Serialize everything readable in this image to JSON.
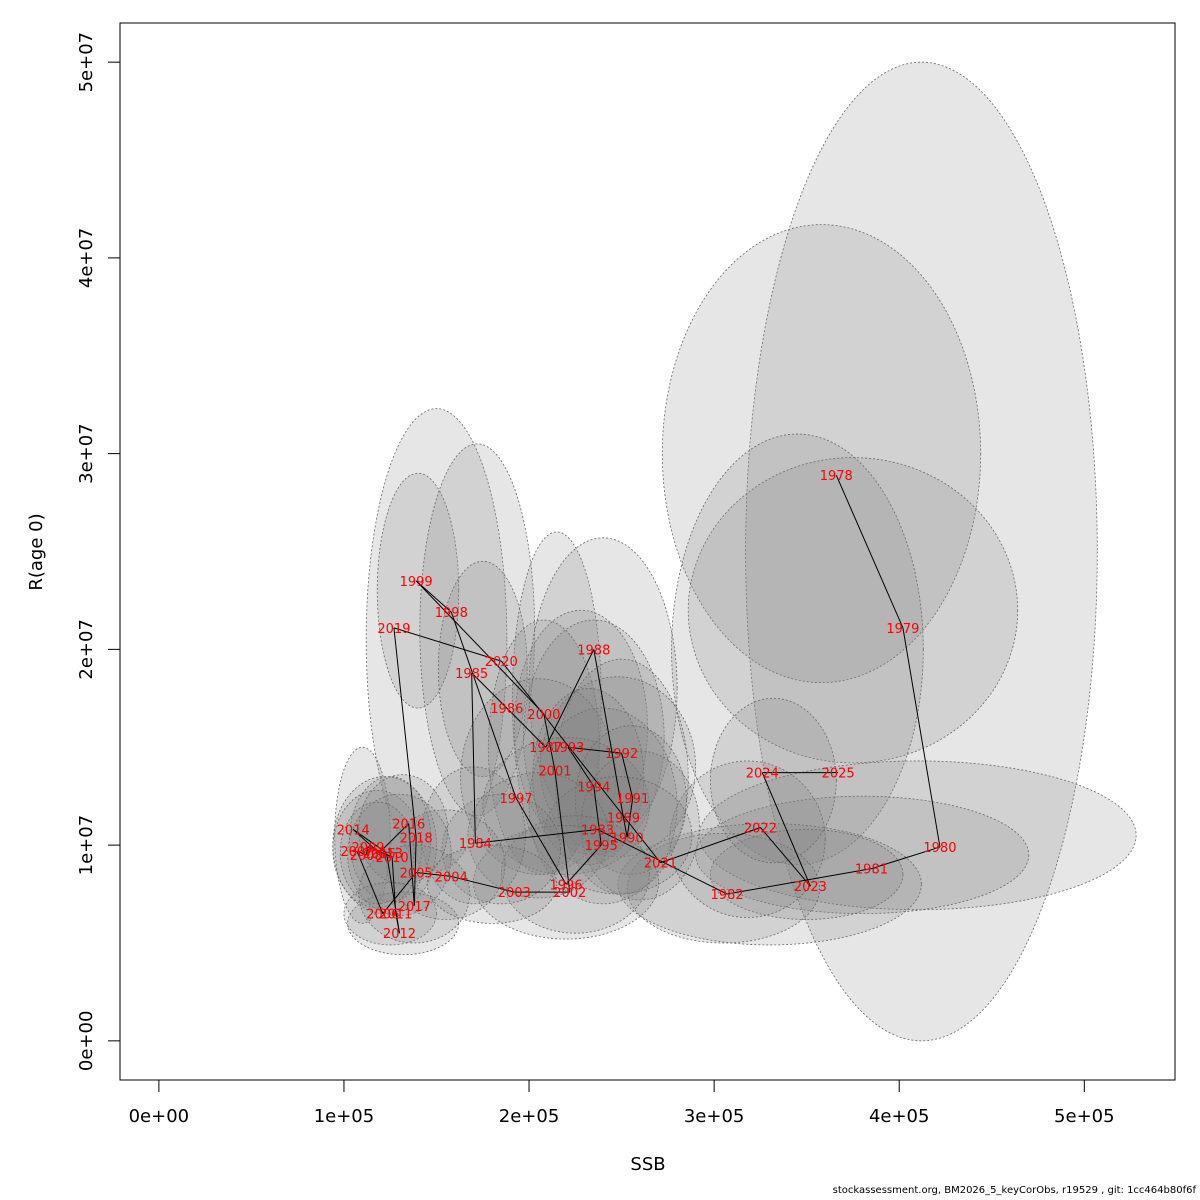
{
  "chart_data": {
    "type": "scatter",
    "xlabel": "SSB",
    "ylabel": "R(age 0)",
    "xlim": [
      -21000,
      549000
    ],
    "ylim": [
      -2000000,
      52000000
    ],
    "x_ticks": [
      0,
      100000,
      200000,
      300000,
      400000,
      500000
    ],
    "x_tick_labels": [
      "0e+00",
      "1e+05",
      "2e+05",
      "3e+05",
      "4e+05",
      "5e+05"
    ],
    "y_ticks": [
      0,
      10000000,
      20000000,
      30000000,
      40000000,
      50000000
    ],
    "y_tick_labels": [
      "0e+00",
      "1e+07",
      "2e+07",
      "3e+07",
      "4e+07",
      "5e+07"
    ],
    "colors": {
      "labels": "#ff0000",
      "path": "#000000",
      "ellipse_fill": "#808080",
      "ellipse_stroke": "#666666"
    },
    "points": [
      {
        "year": "1978",
        "ssb": 366000,
        "rec": 28900000
      },
      {
        "year": "1979",
        "ssb": 402000,
        "rec": 21100000
      },
      {
        "year": "1980",
        "ssb": 422000,
        "rec": 9900000
      },
      {
        "year": "1981",
        "ssb": 385000,
        "rec": 8800000
      },
      {
        "year": "1982",
        "ssb": 307000,
        "rec": 7500000
      },
      {
        "year": "1983",
        "ssb": 237000,
        "rec": 10800000
      },
      {
        "year": "1984",
        "ssb": 171000,
        "rec": 10100000
      },
      {
        "year": "1985",
        "ssb": 169000,
        "rec": 18800000
      },
      {
        "year": "1986",
        "ssb": 188000,
        "rec": 17000000
      },
      {
        "year": "1987",
        "ssb": 209000,
        "rec": 15000000
      },
      {
        "year": "1988",
        "ssb": 235000,
        "rec": 20000000
      },
      {
        "year": "1989",
        "ssb": 251000,
        "rec": 11400000
      },
      {
        "year": "1990",
        "ssb": 253000,
        "rec": 10400000
      },
      {
        "year": "1991",
        "ssb": 256000,
        "rec": 12400000
      },
      {
        "year": "1992",
        "ssb": 250000,
        "rec": 14700000
      },
      {
        "year": "1993",
        "ssb": 221000,
        "rec": 15000000
      },
      {
        "year": "1994",
        "ssb": 235000,
        "rec": 13000000
      },
      {
        "year": "1995",
        "ssb": 239000,
        "rec": 10000000
      },
      {
        "year": "1996",
        "ssb": 220000,
        "rec": 8000000
      },
      {
        "year": "1997",
        "ssb": 193000,
        "rec": 12400000
      },
      {
        "year": "1998",
        "ssb": 158000,
        "rec": 21900000
      },
      {
        "year": "1999",
        "ssb": 139000,
        "rec": 23500000
      },
      {
        "year": "2000",
        "ssb": 208000,
        "rec": 16700000
      },
      {
        "year": "2001",
        "ssb": 214000,
        "rec": 13800000
      },
      {
        "year": "2002",
        "ssb": 222000,
        "rec": 7600000
      },
      {
        "year": "2003",
        "ssb": 192000,
        "rec": 7600000
      },
      {
        "year": "2004",
        "ssb": 158000,
        "rec": 8400000
      },
      {
        "year": "2005",
        "ssb": 139000,
        "rec": 8600000
      },
      {
        "year": "2006",
        "ssb": 121000,
        "rec": 6500000
      },
      {
        "year": "2007",
        "ssb": 107000,
        "rec": 9700000
      },
      {
        "year": "2008",
        "ssb": 112000,
        "rec": 9500000
      },
      {
        "year": "2009",
        "ssb": 113000,
        "rec": 9900000
      },
      {
        "year": "2010",
        "ssb": 126000,
        "rec": 9400000
      },
      {
        "year": "2011",
        "ssb": 128000,
        "rec": 6500000
      },
      {
        "year": "2012",
        "ssb": 130000,
        "rec": 5500000
      },
      {
        "year": "2013",
        "ssb": 123000,
        "rec": 9600000
      },
      {
        "year": "2014",
        "ssb": 105000,
        "rec": 10800000
      },
      {
        "year": "2015",
        "ssb": 119000,
        "rec": 9600000
      },
      {
        "year": "2016",
        "ssb": 135000,
        "rec": 11100000
      },
      {
        "year": "2017",
        "ssb": 138000,
        "rec": 6900000
      },
      {
        "year": "2018",
        "ssb": 139000,
        "rec": 10400000
      },
      {
        "year": "2019",
        "ssb": 127000,
        "rec": 21100000
      },
      {
        "year": "2020",
        "ssb": 185000,
        "rec": 19400000
      },
      {
        "year": "2021",
        "ssb": 271000,
        "rec": 9100000
      },
      {
        "year": "2022",
        "ssb": 325000,
        "rec": 10900000
      },
      {
        "year": "2023",
        "ssb": 352000,
        "rec": 7900000
      },
      {
        "year": "2024",
        "ssb": 326000,
        "rec": 13700000
      },
      {
        "year": "2025",
        "ssb": 367000,
        "rec": 13700000
      }
    ],
    "path_order": [
      "1978",
      "1979",
      "1980",
      "1981",
      "1982",
      "1983",
      "1984",
      "1985",
      "1986",
      "1987",
      "1988",
      "1989",
      "1990",
      "1991",
      "1992",
      "1993",
      "1994",
      "1995",
      "1996",
      "1997",
      "1998",
      "1999",
      "2000",
      "2001",
      "2002",
      "2003",
      "2004",
      "2005",
      "2006",
      "2007",
      "2008",
      "2009",
      "2010",
      "2011",
      "2012",
      "2013",
      "2014",
      "2015",
      "2016",
      "2017",
      "2018",
      "2019",
      "2020",
      "2021",
      "2022",
      "2023",
      "2024",
      "2025"
    ],
    "ellipses": [
      {
        "cx": 412000,
        "cy": 25000000,
        "rx": 95000,
        "ry": 25000000
      },
      {
        "cx": 358000,
        "cy": 30000000,
        "rx": 86000,
        "ry": 11700000
      },
      {
        "cx": 375000,
        "cy": 22000000,
        "rx": 89000,
        "ry": 7800000
      },
      {
        "cx": 345000,
        "cy": 20000000,
        "rx": 68000,
        "ry": 11000000
      },
      {
        "cx": 410000,
        "cy": 10500000,
        "rx": 118000,
        "ry": 3800000
      },
      {
        "cx": 380000,
        "cy": 9500000,
        "rx": 90000,
        "ry": 3000000
      },
      {
        "cx": 330000,
        "cy": 8000000,
        "rx": 82000,
        "ry": 3100000
      },
      {
        "cx": 350000,
        "cy": 8500000,
        "rx": 52000,
        "ry": 2300000
      },
      {
        "cx": 305000,
        "cy": 7800000,
        "rx": 52000,
        "ry": 2800000
      },
      {
        "cx": 318000,
        "cy": 10300000,
        "rx": 42000,
        "ry": 4000000
      },
      {
        "cx": 332000,
        "cy": 13300000,
        "rx": 34000,
        "ry": 4200000
      },
      {
        "cx": 150000,
        "cy": 20500000,
        "rx": 38000,
        "ry": 11800000
      },
      {
        "cx": 140000,
        "cy": 23000000,
        "rx": 22000,
        "ry": 6000000
      },
      {
        "cx": 172000,
        "cy": 21000000,
        "rx": 31000,
        "ry": 9500000
      },
      {
        "cx": 175000,
        "cy": 19000000,
        "rx": 24000,
        "ry": 5500000
      },
      {
        "cx": 215000,
        "cy": 17500000,
        "rx": 24000,
        "ry": 8500000
      },
      {
        "cx": 240000,
        "cy": 18000000,
        "rx": 40000,
        "ry": 7700000
      },
      {
        "cx": 228000,
        "cy": 16000000,
        "rx": 36000,
        "ry": 6000000
      },
      {
        "cx": 235000,
        "cy": 15500000,
        "rx": 38000,
        "ry": 6000000
      },
      {
        "cx": 208000,
        "cy": 15000000,
        "rx": 30000,
        "ry": 6500000
      },
      {
        "cx": 250000,
        "cy": 13500000,
        "rx": 36000,
        "ry": 6000000
      },
      {
        "cx": 248000,
        "cy": 14000000,
        "rx": 42000,
        "ry": 4600000
      },
      {
        "cx": 205000,
        "cy": 13500000,
        "rx": 42000,
        "ry": 5000000
      },
      {
        "cx": 240000,
        "cy": 12000000,
        "rx": 40000,
        "ry": 5000000
      },
      {
        "cx": 232000,
        "cy": 13500000,
        "rx": 30000,
        "ry": 4500000
      },
      {
        "cx": 220000,
        "cy": 12000000,
        "rx": 45000,
        "ry": 3500000
      },
      {
        "cx": 255000,
        "cy": 12300000,
        "rx": 30000,
        "ry": 3800000
      },
      {
        "cx": 260000,
        "cy": 11000000,
        "rx": 32000,
        "ry": 3800000
      },
      {
        "cx": 248000,
        "cy": 10500000,
        "rx": 40000,
        "ry": 3000000
      },
      {
        "cx": 205000,
        "cy": 10500000,
        "rx": 38000,
        "ry": 3200000
      },
      {
        "cx": 225000,
        "cy": 8500000,
        "rx": 40000,
        "ry": 3000000
      },
      {
        "cx": 220000,
        "cy": 8100000,
        "rx": 50000,
        "ry": 2900000
      },
      {
        "cx": 185000,
        "cy": 9800000,
        "rx": 32000,
        "ry": 2800000
      },
      {
        "cx": 170000,
        "cy": 10500000,
        "rx": 28000,
        "ry": 3500000
      },
      {
        "cx": 155000,
        "cy": 9000000,
        "rx": 32000,
        "ry": 2800000
      },
      {
        "cx": 110000,
        "cy": 10500000,
        "rx": 15000,
        "ry": 4500000
      },
      {
        "cx": 122000,
        "cy": 10000000,
        "rx": 28000,
        "ry": 3500000
      },
      {
        "cx": 118000,
        "cy": 9800000,
        "rx": 24000,
        "ry": 3000000
      },
      {
        "cx": 125000,
        "cy": 10300000,
        "rx": 22000,
        "ry": 3200000
      },
      {
        "cx": 130000,
        "cy": 9500000,
        "rx": 28000,
        "ry": 3100000
      },
      {
        "cx": 132000,
        "cy": 10800000,
        "rx": 24000,
        "ry": 2800000
      },
      {
        "cx": 118000,
        "cy": 9600000,
        "rx": 20000,
        "ry": 2600000
      },
      {
        "cx": 125000,
        "cy": 6500000,
        "rx": 25000,
        "ry": 1600000
      },
      {
        "cx": 132000,
        "cy": 6000000,
        "rx": 30000,
        "ry": 1600000
      },
      {
        "cx": 138000,
        "cy": 7500000,
        "rx": 30000,
        "ry": 2500000
      },
      {
        "cx": 180000,
        "cy": 8000000,
        "rx": 35000,
        "ry": 2000000
      }
    ]
  },
  "footer_text": "stockassessment.org, BM2026_5_keyCorObs, r19529 , git: 1cc464b80f6f"
}
